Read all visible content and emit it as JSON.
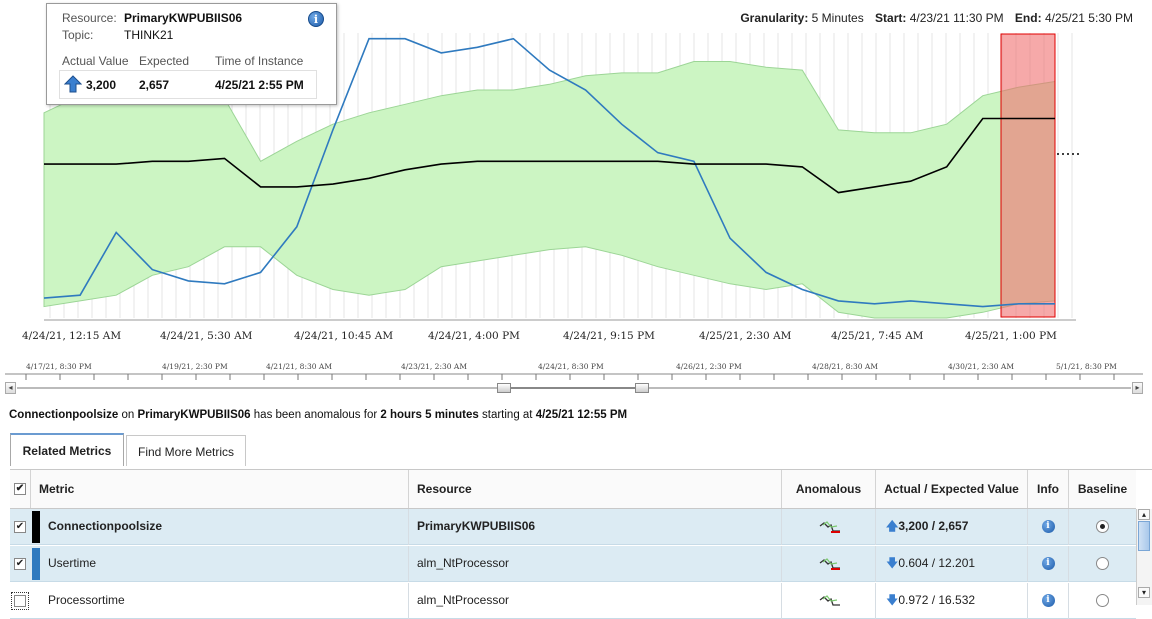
{
  "header": {
    "granularity_label": "Granularity:",
    "granularity_value": "5 Minutes",
    "start_label": "Start:",
    "start_value": "4/23/21 11:30 PM",
    "end_label": "End:",
    "end_value": "4/25/21 5:30 PM"
  },
  "tooltip": {
    "resource_label": "Resource:",
    "resource_value": "PrimaryKWPUBIIS06",
    "topic_label": "Topic:",
    "topic_value": "THINK21",
    "col_actual": "Actual Value",
    "col_expected": "Expected",
    "col_time": "Time of Instance",
    "actual": "3,200",
    "expected": "2,657",
    "time": "4/25/21 2:55 PM",
    "info_glyph": "i"
  },
  "chart_data": {
    "type": "line",
    "x_tick_labels": [
      "4/24/21, 12:15 AM",
      "4/24/21, 5:30 AM",
      "4/24/21, 10:45 AM",
      "4/24/21, 4:00 PM",
      "4/24/21, 9:15 PM",
      "4/25/21, 2:30 AM",
      "4/25/21, 7:45 AM",
      "4/25/21, 1:00 PM"
    ],
    "series": [
      {
        "name": "Connectionpoolsize",
        "color": "#000000",
        "values": [
          0.54,
          0.54,
          0.54,
          0.55,
          0.55,
          0.56,
          0.46,
          0.46,
          0.47,
          0.49,
          0.52,
          0.54,
          0.55,
          0.55,
          0.55,
          0.55,
          0.55,
          0.55,
          0.54,
          0.54,
          0.54,
          0.53,
          0.44,
          0.46,
          0.48,
          0.53,
          0.7,
          0.7,
          0.7
        ]
      },
      {
        "name": "Usertime",
        "color": "#2f7abf",
        "values": [
          0.07,
          0.08,
          0.3,
          0.17,
          0.13,
          0.12,
          0.16,
          0.32,
          0.66,
          0.98,
          0.98,
          0.93,
          0.95,
          0.98,
          0.87,
          0.8,
          0.68,
          0.58,
          0.55,
          0.28,
          0.16,
          0.1,
          0.06,
          0.05,
          0.06,
          0.05,
          0.04,
          0.05,
          0.05
        ]
      }
    ],
    "baseline_band": {
      "color": "#ccf5c3"
    },
    "anomaly_highlight": {
      "color": "#f07070"
    }
  },
  "timeline": {
    "tick_labels": [
      "4/17/21, 8:30 PM",
      "4/19/21, 2:30 PM",
      "4/21/21, 8:30 AM",
      "4/23/21, 2:30 AM",
      "4/24/21, 8:30 PM",
      "4/26/21, 2:30 PM",
      "4/28/21, 8:30 AM",
      "4/30/21, 2:30 AM",
      "5/1/21, 8:30 PM"
    ]
  },
  "status": {
    "metric": "Connectionpoolsize",
    "on": "on",
    "resource": "PrimaryKWPUBIIS06",
    "mid": "has been anomalous for",
    "duration": "2 hours 5 minutes",
    "starting": "starting at",
    "start_time": "4/25/21 12:55 PM"
  },
  "tabs": [
    {
      "label": "Related Metrics",
      "active": true
    },
    {
      "label": "Find More Metrics",
      "active": false
    }
  ],
  "table": {
    "headers": {
      "metric": "Metric",
      "resource": "Resource",
      "anomalous": "Anomalous",
      "value": "Actual / Expected Value",
      "info": "Info",
      "baseline": "Baseline"
    },
    "rows": [
      {
        "metric": "Connectionpoolsize",
        "resource": "PrimaryKWPUBIIS06",
        "value": "3,200 / 2,657",
        "direction": "up",
        "checked": true,
        "selected": true,
        "baseline": true,
        "color": "#000000"
      },
      {
        "metric": "Usertime",
        "resource": "alm_NtProcessor",
        "value": "0.604 / 12.201",
        "direction": "down",
        "checked": true,
        "selected": true,
        "baseline": false,
        "color": "#2f7abf"
      },
      {
        "metric": "Processortime",
        "resource": "alm_NtProcessor",
        "value": "0.972 / 16.532",
        "direction": "down",
        "checked": false,
        "selected": false,
        "baseline": false,
        "color": ""
      }
    ]
  }
}
